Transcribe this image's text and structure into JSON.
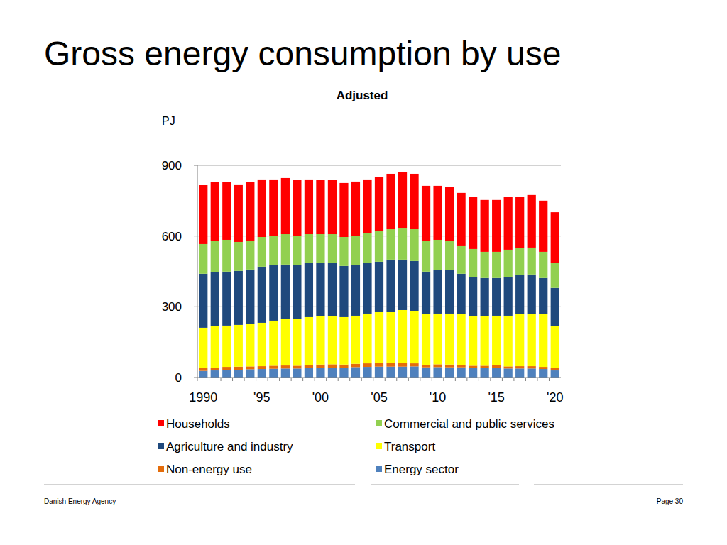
{
  "chart_data": {
    "type": "bar",
    "stacked": true,
    "grid": true,
    "title": "Gross energy consumption by use",
    "subtitle": "Adjusted",
    "y_label": "PJ",
    "categories": [
      "1990",
      null,
      null,
      null,
      null,
      "'95",
      null,
      null,
      null,
      null,
      "'00",
      null,
      null,
      null,
      null,
      "'05",
      null,
      null,
      null,
      null,
      "'10",
      null,
      null,
      null,
      null,
      "'15",
      null,
      null,
      null,
      null,
      "'20"
    ],
    "ylim": [
      0,
      900
    ],
    "yticks": [
      0,
      300,
      600,
      900
    ],
    "series": [
      {
        "name": "Households",
        "color": "#ff0000",
        "values": [
          250,
          250,
          244,
          244,
          247,
          244,
          238,
          238,
          238,
          232,
          229,
          229,
          229,
          229,
          226,
          226,
          235,
          235,
          235,
          232,
          229,
          229,
          223,
          220,
          220,
          220,
          223,
          217,
          223,
          217,
          216
        ]
      },
      {
        "name": "Commercial and public services",
        "color": "#92d050",
        "values": [
          126,
          132,
          135,
          123,
          123,
          126,
          126,
          129,
          123,
          123,
          123,
          123,
          123,
          126,
          129,
          132,
          129,
          135,
          135,
          132,
          129,
          123,
          120,
          120,
          111,
          111,
          117,
          114,
          114,
          111,
          105
        ]
      },
      {
        "name": "Agriculture and industry",
        "color": "#1f497d",
        "values": [
          229,
          229,
          229,
          229,
          232,
          238,
          235,
          232,
          229,
          229,
          226,
          226,
          217,
          214,
          214,
          211,
          220,
          214,
          211,
          181,
          184,
          184,
          172,
          166,
          163,
          160,
          163,
          166,
          169,
          154,
          163
        ]
      },
      {
        "name": "Transport",
        "color": "#ffff00",
        "values": [
          171,
          175,
          175,
          177,
          179,
          184,
          191,
          196,
          197,
          203,
          204,
          203,
          201,
          204,
          211,
          218,
          218,
          225,
          223,
          214,
          215,
          216,
          214,
          209,
          209,
          210,
          215,
          220,
          220,
          223,
          177
        ]
      },
      {
        "name": "Non-energy use",
        "color": "#e46c0a",
        "values": [
          12,
          12,
          13,
          13,
          12,
          12,
          13,
          13,
          12,
          13,
          14,
          14,
          13,
          14,
          15,
          16,
          16,
          15,
          13,
          11,
          12,
          12,
          11,
          9,
          9,
          11,
          9,
          10,
          10,
          9,
          10
        ]
      },
      {
        "name": "Energy sector",
        "color": "#4f81bd",
        "values": [
          28,
          30,
          32,
          33,
          35,
          36,
          37,
          38,
          38,
          40,
          41,
          42,
          42,
          44,
          45,
          46,
          46,
          46,
          47,
          43,
          44,
          43,
          43,
          41,
          41,
          41,
          38,
          38,
          38,
          36,
          30
        ]
      }
    ]
  },
  "footer": {
    "source": "Danish Energy Agency",
    "page": "Page 30"
  }
}
